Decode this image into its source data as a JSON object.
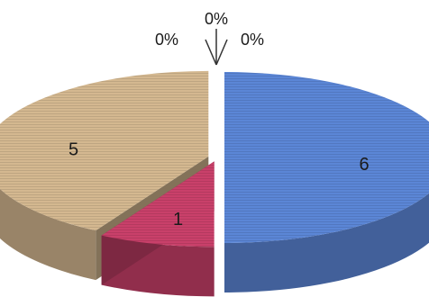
{
  "chart_data": {
    "type": "pie",
    "style": "3d-exploded",
    "slices": [
      {
        "value": 6,
        "label": "6",
        "color": "#5b86d6"
      },
      {
        "value": 0,
        "label": "0%",
        "color": "#7d9a4a"
      },
      {
        "value": 0,
        "label": "0%",
        "color": "#7c5fa0"
      },
      {
        "value": 0,
        "label": "0%",
        "color": "#4aa5b8"
      },
      {
        "value": 1,
        "label": "1",
        "color": "#c9406a"
      },
      {
        "value": 5,
        "label": "5",
        "color": "#d4b890"
      }
    ],
    "legend": false
  }
}
